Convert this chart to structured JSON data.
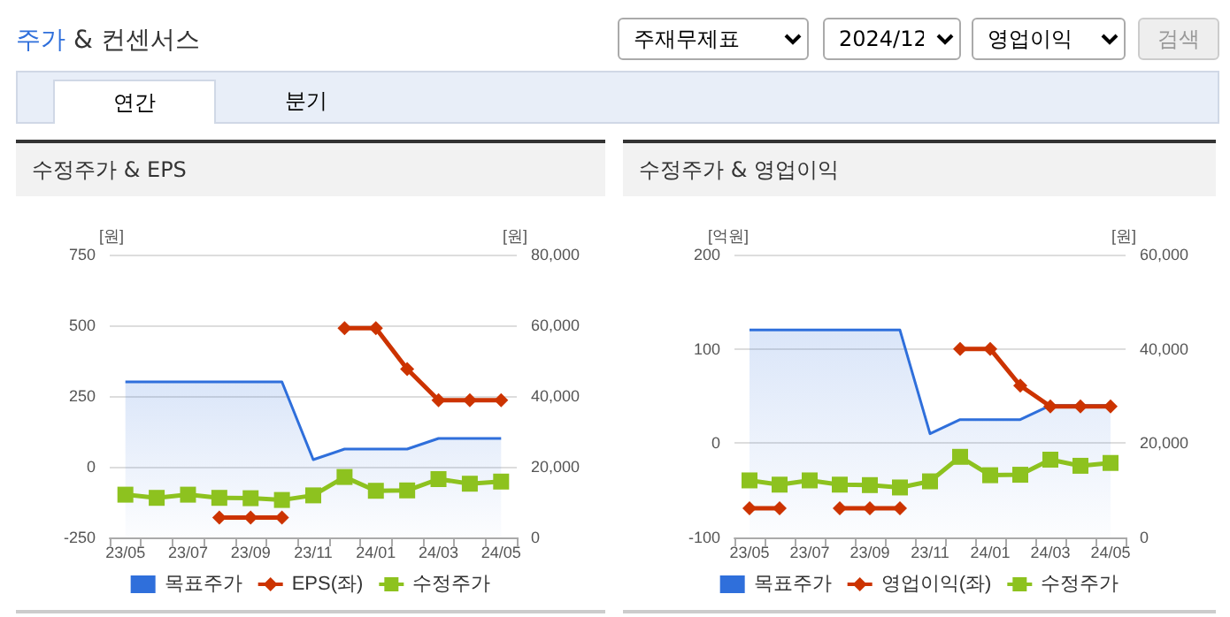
{
  "chart_data": [
    {
      "type": "line",
      "title": "수정주가 & EPS",
      "ylabel": "[원]",
      "y2label": "[원]",
      "annotations": [
        "주가 & 컨센서스",
        "주재무제표",
        "2024/12",
        "영업이익",
        "검색",
        "연간",
        "분기"
      ],
      "categories": [
        "23/05",
        null,
        "23/07",
        null,
        "23/09",
        null,
        "23/11",
        null,
        "24/01",
        null,
        "24/03",
        null,
        "24/05"
      ],
      "series": [
        {
          "name": "목표주가",
          "type": "area",
          "color": "#2f6fdb",
          "axis": "y2",
          "marker": "none",
          "values": [
            44000,
            44000,
            44000,
            44000,
            44000,
            44000,
            22000,
            25000,
            25000,
            25000,
            28000,
            28000,
            28000
          ]
        },
        {
          "name": "EPS(좌)",
          "type": "line",
          "color": "#cc3300",
          "marker": "diamond",
          "values": [
            null,
            null,
            null,
            -180,
            -180,
            -180,
            null,
            490,
            490,
            345,
            235,
            235,
            235
          ]
        },
        {
          "name": "수정주가",
          "type": "line",
          "color": "#8dc21f",
          "axis": "y2",
          "marker": "square",
          "values": [
            12100,
            11200,
            12100,
            11200,
            11100,
            10600,
            11900,
            17100,
            13200,
            13300,
            16500,
            15200,
            15800
          ]
        }
      ],
      "ylim": [
        -250,
        750
      ],
      "yticks": [
        -250,
        0,
        250,
        500,
        750
      ],
      "y2lim": [
        0,
        80000
      ],
      "y2ticks": [
        0,
        {
          "value": 20000,
          "label": "20,000"
        },
        {
          "value": 40000,
          "label": "40,000"
        },
        {
          "value": 60000,
          "label": "60,000"
        },
        {
          "value": 80000,
          "label": "80,000"
        }
      ],
      "grid": "y",
      "legend": "bottom"
    },
    {
      "type": "line",
      "title": "수정주가 & 영업이익",
      "ylabel": "[억원]",
      "y2label": "[원]",
      "categories": [
        "23/05",
        null,
        "23/07",
        null,
        "23/09",
        null,
        "23/11",
        null,
        "24/01",
        null,
        "24/03",
        null,
        "24/05"
      ],
      "series": [
        {
          "name": "목표주가",
          "type": "area",
          "color": "#2f6fdb",
          "axis": "y2",
          "marker": "none",
          "values": [
            44000,
            44000,
            44000,
            44000,
            44000,
            44000,
            22000,
            25000,
            25000,
            25000,
            28000,
            28000,
            28000
          ]
        },
        {
          "name": "영업이익(좌)",
          "type": "line",
          "color": "#cc3300",
          "marker": "diamond",
          "values": [
            -69,
            -69,
            null,
            -69,
            -69,
            -69,
            null,
            100,
            100,
            61,
            39,
            39,
            39
          ]
        },
        {
          "name": "수정주가",
          "type": "line",
          "color": "#8dc21f",
          "axis": "y2",
          "marker": "square",
          "values": [
            12100,
            11200,
            12100,
            11200,
            11100,
            10600,
            11900,
            17100,
            13200,
            13300,
            16500,
            15200,
            15800
          ]
        }
      ],
      "ylim": [
        -100,
        200
      ],
      "yticks": [
        -100,
        0,
        100,
        200
      ],
      "y2lim": [
        0,
        60000
      ],
      "y2ticks": [
        0,
        {
          "value": 20000,
          "label": "20,000"
        },
        {
          "value": 40000,
          "label": "40,000"
        },
        {
          "value": 60000,
          "label": "60,000"
        }
      ],
      "grid": "y",
      "legend": "bottom"
    }
  ]
}
